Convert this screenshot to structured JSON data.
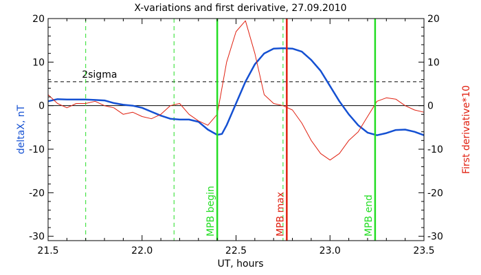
{
  "chart_data": {
    "type": "line",
    "title": "X-variations and first derivative, 27.09.2010",
    "xlabel": "UT, hours",
    "ylabel_left": "deltaX, nT",
    "ylabel_right": "First derivative*10",
    "xlim": [
      21.5,
      23.5
    ],
    "ylim": [
      -31,
      20
    ],
    "x_ticks": [
      {
        "value": 21.5,
        "label": "21.5"
      },
      {
        "value": 22.0,
        "label": "22.0"
      },
      {
        "value": 22.5,
        "label": "22.5"
      },
      {
        "value": 23.0,
        "label": "23.0"
      },
      {
        "value": 23.5,
        "label": "23.5"
      }
    ],
    "y_ticks": [
      {
        "value": 20,
        "label": "20"
      },
      {
        "value": 10,
        "label": "10"
      },
      {
        "value": 0,
        "label": "0"
      },
      {
        "value": -10,
        "label": "-10"
      },
      {
        "value": -20,
        "label": "-20"
      },
      {
        "value": -30,
        "label": "-30"
      }
    ],
    "colors": {
      "deltaX": "#1450d2",
      "derivative": "#e02010",
      "green": "#22dd22",
      "red_marker": "#e02010",
      "black": "#000000"
    },
    "series": [
      {
        "key": "deltaX",
        "color": "#1450d2",
        "x": [
          21.5,
          21.55,
          21.6,
          21.65,
          21.7,
          21.75,
          21.8,
          21.85,
          21.9,
          21.95,
          22.0,
          22.05,
          22.1,
          22.15,
          22.2,
          22.25,
          22.3,
          22.35,
          22.4,
          22.425,
          22.45,
          22.5,
          22.55,
          22.6,
          22.65,
          22.7,
          22.75,
          22.8,
          22.85,
          22.9,
          22.95,
          23.0,
          23.05,
          23.1,
          23.15,
          23.2,
          23.25,
          23.3,
          23.35,
          23.4,
          23.45,
          23.5
        ],
        "y": [
          1.0,
          1.5,
          1.4,
          1.4,
          1.4,
          1.3,
          1.2,
          0.6,
          0.2,
          0.0,
          -0.5,
          -1.4,
          -2.3,
          -3.0,
          -3.2,
          -3.2,
          -3.7,
          -5.5,
          -6.7,
          -6.5,
          -4.5,
          0.5,
          5.5,
          9.5,
          12.0,
          13.1,
          13.2,
          13.1,
          12.4,
          10.5,
          8.0,
          4.5,
          1.0,
          -2.0,
          -4.5,
          -6.2,
          -6.8,
          -6.3,
          -5.6,
          -5.5,
          -6.0,
          -6.8
        ]
      },
      {
        "key": "derivative",
        "color": "#e02010",
        "x": [
          21.5,
          21.55,
          21.6,
          21.65,
          21.7,
          21.75,
          21.8,
          21.85,
          21.9,
          21.95,
          22.0,
          22.05,
          22.1,
          22.15,
          22.2,
          22.25,
          22.3,
          22.35,
          22.4,
          22.45,
          22.5,
          22.55,
          22.6,
          22.65,
          22.7,
          22.75,
          22.8,
          22.85,
          22.9,
          22.95,
          23.0,
          23.05,
          23.1,
          23.15,
          23.2,
          23.25,
          23.3,
          23.35,
          23.4,
          23.45,
          23.5
        ],
        "y": [
          2.5,
          0.5,
          -0.5,
          0.5,
          0.5,
          1.0,
          0.0,
          -0.5,
          -2.0,
          -1.5,
          -2.5,
          -3.0,
          -2.0,
          0.0,
          0.5,
          -2.0,
          -3.5,
          -4.5,
          -2.0,
          10.0,
          17.0,
          19.5,
          12.0,
          2.5,
          0.5,
          0.0,
          -1.0,
          -4.0,
          -8.0,
          -11.0,
          -12.5,
          -11.0,
          -8.0,
          -6.0,
          -2.5,
          1.0,
          1.8,
          1.5,
          0.0,
          -1.0,
          -1.5
        ]
      }
    ],
    "reference_lines": {
      "zero": 0,
      "sigma": {
        "value": 5.5,
        "label": "2sigma"
      }
    },
    "dashed_verticals": [
      21.7,
      22.17,
      22.75
    ],
    "markers": [
      {
        "x": 22.4,
        "label": "MPB begin",
        "color": "#22dd22"
      },
      {
        "x": 22.77,
        "label": "MPB max",
        "color": "#e02010"
      },
      {
        "x": 23.24,
        "label": "MPB end",
        "color": "#22dd22"
      }
    ]
  }
}
